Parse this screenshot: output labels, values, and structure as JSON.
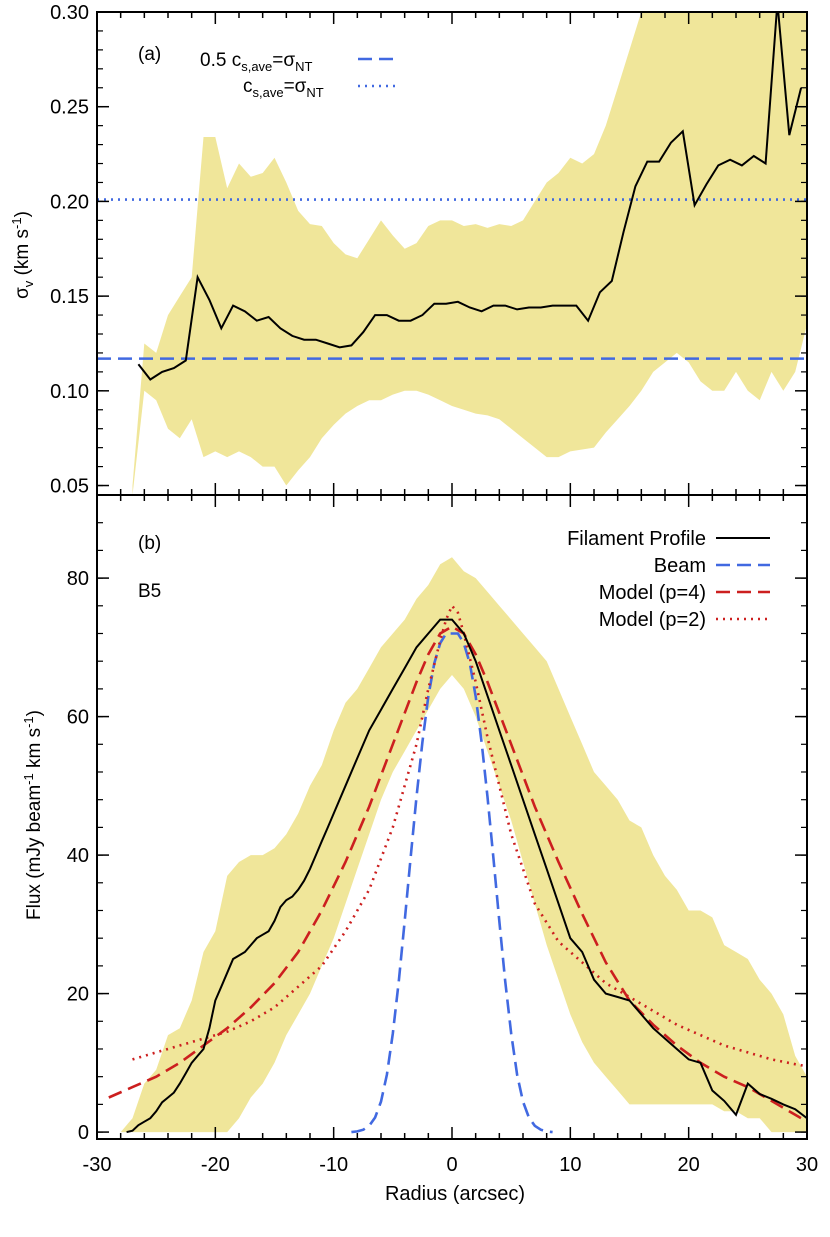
{
  "chart_data": [
    {
      "panel": "(a)",
      "type": "line",
      "ylabel_main": "σ",
      "ylabel_sub": "v",
      "ylabel_rest": " (km s",
      "ylabel_sup": "-1",
      "ylabel_close": ")",
      "xlim": [
        -30,
        30
      ],
      "ylim": [
        0.045,
        0.3
      ],
      "yticks": [
        0.05,
        0.1,
        0.15,
        0.2,
        0.25,
        0.3
      ],
      "ytick_labels": [
        "0.05",
        "0.10",
        "0.15",
        "0.20",
        "0.25",
        "0.30"
      ],
      "legend": [
        {
          "pre": "0.5 c",
          "sub": "s,ave",
          "mid": "=σ",
          "sub2": "NT",
          "style": "dashed",
          "color": "#4169e1"
        },
        {
          "pre": "c",
          "sub": "s,ave",
          "mid": "=σ",
          "sub2": "NT",
          "style": "dotted",
          "color": "#4169e1"
        }
      ],
      "hlines": [
        {
          "y": 0.117,
          "style": "dashed",
          "color": "#4169e1"
        },
        {
          "y": 0.201,
          "style": "dotted",
          "color": "#4169e1"
        }
      ],
      "band_color": "#f0e69a",
      "series": [
        {
          "kind": "band",
          "x": [
            -27,
            -26,
            -25,
            -24,
            -23,
            -22,
            -21,
            -20,
            -19,
            -18,
            -17,
            -16,
            -15,
            -14,
            -13,
            -12,
            -11,
            -10,
            -9,
            -8,
            -7,
            -6,
            -5,
            -4,
            -3,
            -2,
            -1,
            0,
            1,
            2,
            3,
            4,
            5,
            6,
            7,
            8,
            9,
            10,
            11,
            12,
            13,
            14,
            15,
            16,
            17,
            18,
            19,
            20,
            21,
            22,
            23,
            24,
            25,
            26,
            27,
            28,
            29,
            30
          ],
          "upper": [
            0.05,
            0.125,
            0.12,
            0.14,
            0.15,
            0.16,
            0.234,
            0.234,
            0.207,
            0.22,
            0.213,
            0.215,
            0.223,
            0.21,
            0.195,
            0.188,
            0.187,
            0.178,
            0.172,
            0.17,
            0.18,
            0.19,
            0.182,
            0.175,
            0.178,
            0.187,
            0.19,
            0.19,
            0.187,
            0.188,
            0.186,
            0.188,
            0.187,
            0.19,
            0.2,
            0.21,
            0.215,
            0.223,
            0.22,
            0.225,
            0.24,
            0.26,
            0.28,
            0.3,
            0.3,
            0.3,
            0.3,
            0.3,
            0.3,
            0.3,
            0.3,
            0.3,
            0.3,
            0.3,
            0.3,
            0.3,
            0.3,
            0.3
          ],
          "lower": [
            0.045,
            0.1,
            0.095,
            0.08,
            0.075,
            0.085,
            0.065,
            0.068,
            0.065,
            0.068,
            0.065,
            0.06,
            0.06,
            0.05,
            0.058,
            0.065,
            0.075,
            0.082,
            0.088,
            0.092,
            0.095,
            0.095,
            0.098,
            0.1,
            0.1,
            0.098,
            0.095,
            0.092,
            0.09,
            0.088,
            0.087,
            0.085,
            0.08,
            0.075,
            0.07,
            0.065,
            0.065,
            0.068,
            0.069,
            0.07,
            0.078,
            0.085,
            0.092,
            0.1,
            0.11,
            0.115,
            0.12,
            0.115,
            0.105,
            0.1,
            0.1,
            0.11,
            0.1,
            0.095,
            0.11,
            0.1,
            0.11,
            0.135
          ]
        },
        {
          "kind": "line",
          "color": "#000000",
          "x": [
            -26.5,
            -25.5,
            -24.5,
            -23.5,
            -22.5,
            -21.5,
            -20.5,
            -19.5,
            -18.5,
            -17.5,
            -16.5,
            -15.5,
            -14.5,
            -13.5,
            -12.5,
            -11.5,
            -10.5,
            -9.5,
            -8.5,
            -7.5,
            -6.5,
            -5.5,
            -4.5,
            -3.5,
            -2.5,
            -1.5,
            -0.5,
            0.5,
            1.5,
            2.5,
            3.5,
            4.5,
            5.5,
            6.5,
            7.5,
            8.5,
            9.5,
            10.5,
            11.5,
            12.5,
            13.5,
            14.5,
            15.5,
            16.5,
            17.5,
            18.5,
            19.5,
            20.5,
            21.5,
            22.5,
            23.5,
            24.5,
            25.5,
            26.5,
            27.5,
            28.5,
            29.5
          ],
          "y": [
            0.114,
            0.106,
            0.11,
            0.112,
            0.116,
            0.16,
            0.148,
            0.133,
            0.145,
            0.142,
            0.137,
            0.139,
            0.133,
            0.129,
            0.127,
            0.127,
            0.125,
            0.123,
            0.124,
            0.131,
            0.14,
            0.14,
            0.137,
            0.137,
            0.14,
            0.146,
            0.146,
            0.147,
            0.144,
            0.142,
            0.145,
            0.145,
            0.143,
            0.144,
            0.144,
            0.145,
            0.145,
            0.145,
            0.137,
            0.152,
            0.158,
            0.184,
            0.208,
            0.221,
            0.221,
            0.231,
            0.237,
            0.198,
            0.209,
            0.219,
            0.222,
            0.219,
            0.224,
            0.22,
            0.305,
            0.235,
            0.26
          ]
        }
      ]
    },
    {
      "panel": "(b)",
      "type": "line",
      "label": "B5",
      "xlabel": "Radius (arcsec)",
      "ylabel_pre": "Flux (mJy beam",
      "ylabel_sup1": "-1",
      "ylabel_mid": " km s",
      "ylabel_sup2": "-1",
      "ylabel_close": ")",
      "xlim": [
        -30,
        30
      ],
      "ylim": [
        -1,
        92
      ],
      "xticks": [
        -30,
        -20,
        -10,
        0,
        10,
        20,
        30
      ],
      "xtick_labels": [
        "-30",
        "-20",
        "-10",
        "0",
        "10",
        "20",
        "30"
      ],
      "yticks": [
        0,
        20,
        40,
        60,
        80
      ],
      "ytick_labels": [
        "0",
        "20",
        "40",
        "60",
        "80"
      ],
      "band_color": "#f0e69a",
      "legend": [
        {
          "label": "Filament Profile",
          "style": "solid",
          "color": "#000000"
        },
        {
          "label": "Beam",
          "style": "dashed",
          "color": "#4169e1"
        },
        {
          "label": "Model (p=4)",
          "style": "dashed",
          "color": "#cc1f1f"
        },
        {
          "label": "Model (p=2)",
          "style": "dotted",
          "color": "#cc1f1f"
        }
      ],
      "series": [
        {
          "kind": "band",
          "x": [
            -28,
            -27,
            -26,
            -25,
            -24,
            -23,
            -22,
            -21,
            -20,
            -19,
            -18,
            -17,
            -16,
            -15,
            -14,
            -13,
            -12,
            -11,
            -10,
            -9,
            -8,
            -7,
            -6,
            -5,
            -4,
            -3,
            -2,
            -1,
            0,
            1,
            2,
            3,
            4,
            5,
            6,
            7,
            8,
            9,
            10,
            11,
            12,
            13,
            14,
            15,
            16,
            17,
            18,
            19,
            20,
            21,
            22,
            23,
            24,
            25,
            26,
            27,
            28,
            29,
            30
          ],
          "upper": [
            0,
            2,
            7,
            9,
            14,
            15,
            19,
            26,
            29,
            37,
            39,
            40,
            40,
            41,
            43,
            46,
            50,
            53,
            58,
            62,
            64,
            67,
            70,
            72,
            74,
            77,
            79,
            82,
            83,
            81,
            80,
            78,
            76,
            74,
            72,
            70,
            68,
            64,
            60,
            56,
            52,
            50,
            48,
            45,
            44,
            40,
            37,
            35,
            32,
            32,
            31,
            27,
            26,
            25,
            22,
            20,
            17,
            11,
            8
          ],
          "lower": [
            0,
            0,
            0,
            0,
            0,
            0,
            0,
            0,
            0,
            0,
            2,
            5,
            7,
            10,
            14,
            17,
            20,
            24,
            28,
            33,
            38,
            43,
            48,
            52,
            55,
            58,
            61,
            64,
            66,
            64,
            60,
            55,
            50,
            45,
            39,
            33,
            27,
            22,
            17,
            13,
            10,
            8,
            6,
            4,
            4,
            4,
            4,
            4,
            4,
            4,
            4,
            3,
            3,
            2,
            2,
            0,
            0,
            0,
            0
          ]
        },
        {
          "kind": "line",
          "name": "Filament Profile",
          "color": "#000000",
          "style": "solid",
          "x": [
            -27.5,
            -27,
            -26.5,
            -26,
            -25.5,
            -25,
            -24.5,
            -24,
            -23.5,
            -23,
            -22.5,
            -22,
            -21.5,
            -21,
            -20.5,
            -20,
            -19.5,
            -19,
            -18.5,
            -18,
            -17.5,
            -17,
            -16.5,
            -16,
            -15.5,
            -15,
            -14.5,
            -14,
            -13.5,
            -13,
            -12.5,
            -12,
            -11.5,
            -11,
            -10.5,
            -10,
            -9,
            -8,
            -7,
            -6,
            -5,
            -4,
            -3,
            -2,
            -1,
            0,
            1,
            2,
            3,
            4,
            5,
            6,
            7,
            8,
            9,
            10,
            11,
            12,
            13,
            14,
            15,
            16,
            17,
            18,
            19,
            20,
            21,
            22,
            23,
            24,
            25,
            26,
            27,
            28,
            29,
            30
          ],
          "y": [
            0,
            0.2,
            1,
            1.5,
            2,
            3,
            4.3,
            5,
            5.7,
            7,
            8.5,
            10,
            11,
            12,
            15,
            19,
            21,
            23,
            25,
            25.5,
            26,
            27,
            28,
            28.5,
            29,
            30.5,
            32.5,
            33.5,
            34,
            35,
            36.3,
            38,
            40,
            42,
            44,
            46,
            50,
            54,
            58,
            61,
            64,
            67,
            70,
            72,
            74,
            74,
            72,
            68,
            63,
            58,
            53,
            48,
            43,
            38,
            33,
            28,
            26,
            22,
            20,
            19.5,
            19,
            17,
            15,
            13.5,
            12,
            10.5,
            10,
            6,
            4.5,
            2.5,
            7,
            5.5,
            4.8,
            4,
            3.3,
            2
          ]
        },
        {
          "kind": "line",
          "name": "Beam",
          "color": "#4169e1",
          "style": "dashed",
          "x": [
            -8.5,
            -8,
            -7.5,
            -7,
            -6.5,
            -6,
            -5.5,
            -5,
            -4.5,
            -4,
            -3.5,
            -3,
            -2.5,
            -2,
            -1.5,
            -1,
            -0.5,
            0,
            0.5,
            1,
            1.5,
            2,
            2.5,
            3,
            3.5,
            4,
            4.5,
            5,
            5.5,
            6,
            6.5,
            7,
            7.5,
            8,
            8.5
          ],
          "y": [
            0,
            0.1,
            0.35,
            0.9,
            2.1,
            4.4,
            8.3,
            14.2,
            21.8,
            30.5,
            39.6,
            48.4,
            56.3,
            62.9,
            67.7,
            70.6,
            72,
            72,
            72,
            70.6,
            67.7,
            62.9,
            56.3,
            48.4,
            39.6,
            30.5,
            21.8,
            14.2,
            8.3,
            4.4,
            2.1,
            0.9,
            0.35,
            0.1,
            0
          ]
        },
        {
          "kind": "line",
          "name": "Model (p=4)",
          "color": "#cc1f1f",
          "style": "dashed",
          "x": [
            -29,
            -27,
            -25,
            -23,
            -21,
            -19,
            -17,
            -15,
            -13,
            -11,
            -9,
            -7,
            -5,
            -3,
            -2,
            -1,
            0,
            1,
            2,
            3,
            5,
            7,
            9,
            11,
            13,
            15,
            17,
            19,
            21,
            23,
            25,
            27,
            29,
            30
          ],
          "y": [
            5,
            6.5,
            8,
            10,
            12.5,
            15,
            18,
            21.5,
            26,
            32,
            39,
            47,
            56,
            65,
            69,
            72,
            73,
            72,
            69,
            65,
            56,
            47,
            39,
            31.5,
            24.5,
            19,
            15.5,
            12.5,
            10,
            8,
            6.5,
            4.5,
            2.5,
            1.5
          ]
        },
        {
          "kind": "line",
          "name": "Model (p=2)",
          "color": "#cc1f1f",
          "style": "dotted",
          "x": [
            -27,
            -25,
            -23,
            -21,
            -19,
            -17,
            -15,
            -13,
            -11,
            -9,
            -7,
            -5,
            -3,
            -2,
            -1,
            -0.5,
            0,
            0.5,
            1,
            2,
            3,
            5,
            7,
            9,
            11,
            13,
            15,
            17,
            19,
            21,
            23,
            25,
            27,
            29,
            30
          ],
          "y": [
            10.5,
            11.5,
            12.5,
            13.5,
            14.5,
            16,
            18,
            21,
            24,
            29,
            35,
            44,
            56,
            64,
            71,
            74,
            76,
            75,
            72,
            65,
            57,
            43,
            33,
            27.5,
            24.5,
            21.5,
            19.5,
            17.5,
            15.5,
            14,
            12.5,
            11.5,
            10.5,
            9.8,
            9.5
          ]
        }
      ]
    }
  ]
}
